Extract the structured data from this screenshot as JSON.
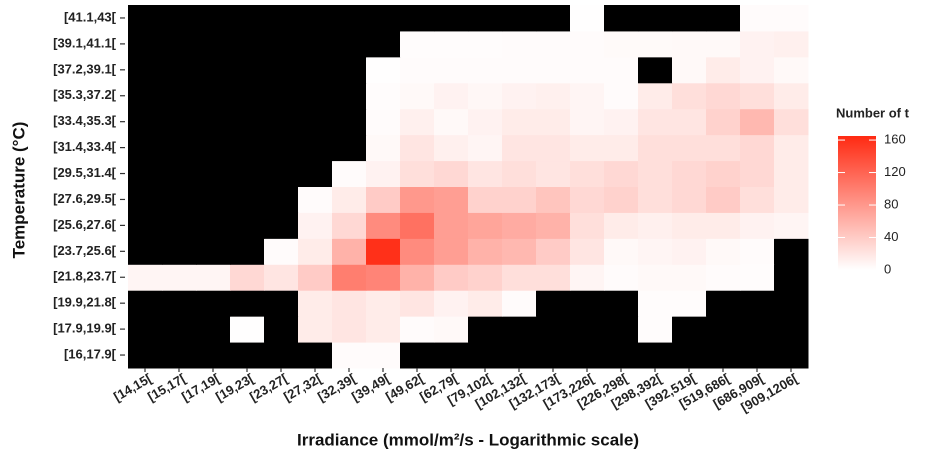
{
  "chart_data": {
    "type": "heatmap",
    "x_label": "Irradiance (mmol/m²/s - Logarithmic scale)",
    "y_label": "Temperature (°C)",
    "legend_title": "Number of t",
    "x_categories": [
      "[14,15[",
      "[15,17[",
      "[17,19[",
      "[19,23[",
      "[23,27[",
      "[27,32[",
      "[32,39[",
      "[39,49[",
      "[49,62[",
      "[62,79[",
      "[79,102[",
      "[102,132[",
      "[132,173[",
      "[173,226[",
      "[226,298[",
      "[298,392[",
      "[392,519[",
      "[519,686[",
      "[686,909[",
      "[909,1206["
    ],
    "y_categories": [
      "[16,17.9[",
      "[17.9,19.9[",
      "[19.9,21.8[",
      "[21.8,23.7[",
      "[23.7,25.6[",
      "[25.6,27.6[",
      "[27.6,29.5[",
      "[29.5,31.4[",
      "[31.4,33.4[",
      "[33.4,35.3[",
      "[35.3,37.2[",
      "[37.2,39.1[",
      "[39.1,41.1[",
      "[41.1,43["
    ],
    "values": [
      [
        null,
        null,
        null,
        null,
        null,
        null,
        3,
        3,
        null,
        null,
        null,
        null,
        null,
        null,
        null,
        null,
        null,
        null,
        null,
        null
      ],
      [
        null,
        null,
        null,
        1,
        null,
        15,
        20,
        15,
        3,
        5,
        null,
        null,
        null,
        null,
        null,
        2,
        null,
        null,
        null,
        null
      ],
      [
        null,
        null,
        null,
        null,
        null,
        15,
        20,
        15,
        20,
        10,
        15,
        3,
        null,
        null,
        null,
        2,
        2,
        null,
        null,
        null
      ],
      [
        8,
        8,
        8,
        30,
        20,
        40,
        100,
        95,
        60,
        40,
        35,
        25,
        25,
        8,
        3,
        5,
        5,
        3,
        2,
        null
      ],
      [
        null,
        null,
        null,
        null,
        3,
        15,
        60,
        160,
        90,
        75,
        60,
        55,
        40,
        20,
        5,
        8,
        10,
        5,
        3,
        null
      ],
      [
        null,
        null,
        null,
        null,
        null,
        10,
        30,
        90,
        110,
        75,
        70,
        65,
        60,
        25,
        15,
        12,
        15,
        15,
        10,
        8
      ],
      [
        null,
        null,
        null,
        null,
        null,
        3,
        15,
        40,
        80,
        75,
        35,
        35,
        45,
        30,
        35,
        25,
        30,
        40,
        25,
        15
      ],
      [
        null,
        null,
        null,
        null,
        null,
        null,
        3,
        10,
        25,
        30,
        20,
        25,
        20,
        25,
        30,
        25,
        30,
        35,
        30,
        15
      ],
      [
        null,
        null,
        null,
        null,
        null,
        null,
        null,
        5,
        20,
        12,
        8,
        20,
        20,
        15,
        15,
        25,
        25,
        25,
        30,
        15
      ],
      [
        null,
        null,
        null,
        null,
        null,
        null,
        null,
        3,
        12,
        5,
        10,
        15,
        15,
        8,
        10,
        20,
        20,
        35,
        55,
        25
      ],
      [
        null,
        null,
        null,
        null,
        null,
        null,
        null,
        2,
        5,
        10,
        6,
        10,
        12,
        8,
        3,
        15,
        25,
        30,
        25,
        15
      ],
      [
        null,
        null,
        null,
        null,
        null,
        null,
        null,
        1,
        3,
        3,
        3,
        3,
        3,
        3,
        3,
        null,
        5,
        15,
        10,
        5
      ],
      [
        null,
        null,
        null,
        null,
        null,
        null,
        null,
        null,
        2,
        2,
        2,
        3,
        3,
        3,
        4,
        4,
        5,
        5,
        10,
        12
      ],
      [
        null,
        null,
        null,
        null,
        null,
        null,
        null,
        null,
        null,
        null,
        null,
        null,
        null,
        1,
        null,
        null,
        null,
        null,
        3,
        3
      ]
    ],
    "low_color": "#ffffff",
    "high_color": "#ff2a12",
    "na_color": "#000000",
    "colorbar_lim": [
      0,
      165
    ],
    "colorbar_ticks": [
      0,
      40,
      80,
      120,
      160
    ]
  }
}
